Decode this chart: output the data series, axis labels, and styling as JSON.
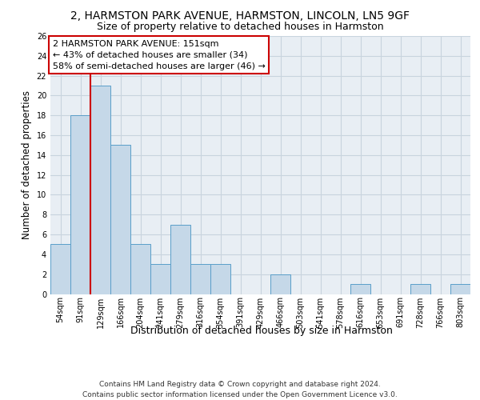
{
  "title": "2, HARMSTON PARK AVENUE, HARMSTON, LINCOLN, LN5 9GF",
  "subtitle": "Size of property relative to detached houses in Harmston",
  "xlabel": "Distribution of detached houses by size in Harmston",
  "ylabel": "Number of detached properties",
  "categories": [
    "54sqm",
    "91sqm",
    "129sqm",
    "166sqm",
    "204sqm",
    "241sqm",
    "279sqm",
    "316sqm",
    "354sqm",
    "391sqm",
    "429sqm",
    "466sqm",
    "503sqm",
    "541sqm",
    "578sqm",
    "616sqm",
    "653sqm",
    "691sqm",
    "728sqm",
    "766sqm",
    "803sqm"
  ],
  "values": [
    5,
    18,
    21,
    15,
    5,
    3,
    7,
    3,
    3,
    0,
    0,
    2,
    0,
    0,
    0,
    1,
    0,
    0,
    1,
    0,
    1
  ],
  "bar_color": "#c5d8e8",
  "bar_edge_color": "#5a9ec9",
  "vline_index": 2,
  "vline_color": "#cc0000",
  "annotation_text": "2 HARMSTON PARK AVENUE: 151sqm\n← 43% of detached houses are smaller (34)\n58% of semi-detached houses are larger (46) →",
  "annotation_box_color": "#cc0000",
  "ylim": [
    0,
    26
  ],
  "yticks": [
    0,
    2,
    4,
    6,
    8,
    10,
    12,
    14,
    16,
    18,
    20,
    22,
    24,
    26
  ],
  "footer": "Contains HM Land Registry data © Crown copyright and database right 2024.\nContains public sector information licensed under the Open Government Licence v3.0.",
  "bg_color": "#e8eef4",
  "grid_color": "#c8d4de",
  "title_fontsize": 10,
  "subtitle_fontsize": 9,
  "ylabel_fontsize": 8.5,
  "xlabel_fontsize": 9,
  "tick_fontsize": 7,
  "annotation_fontsize": 8,
  "footer_fontsize": 6.5
}
